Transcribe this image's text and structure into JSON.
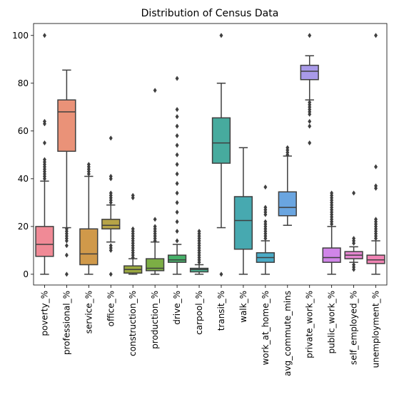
{
  "chart_data": {
    "type": "boxplot",
    "title": "Distribution of Census Data",
    "xlabel": "",
    "ylabel": "",
    "ylim": [
      -4.5,
      105
    ],
    "yticks": [
      0,
      20,
      40,
      60,
      80,
      100
    ],
    "categories": [
      "poverty_%",
      "professional_%",
      "service_%",
      "office_%",
      "construction_%",
      "production_%",
      "drive_%",
      "carpool_%",
      "transit_%",
      "walk_%",
      "work_at_home_%",
      "avg_commute_mins",
      "private_work_%",
      "public_work_%",
      "self_employed_%",
      "unemployment_%"
    ],
    "colors": [
      "#f08a96",
      "#ea9278",
      "#d0994a",
      "#b7a447",
      "#9ba93f",
      "#7cae45",
      "#46b069",
      "#48ae8d",
      "#47ab9e",
      "#47a9b0",
      "#4aabc6",
      "#6aa5e0",
      "#a99ae9",
      "#d085e8",
      "#e486d0",
      "#f083b3"
    ],
    "boxes": [
      {
        "label": "poverty_%",
        "whisker_low": 0,
        "q1": 7.5,
        "median": 12.5,
        "q3": 20,
        "whisker_high": 39,
        "outliers": [
          40,
          41,
          42,
          43,
          44,
          45,
          46,
          47,
          48,
          55,
          63,
          64,
          100
        ]
      },
      {
        "label": "professional_%",
        "whisker_low": 19.5,
        "q1": 51.5,
        "median": 68,
        "q3": 73,
        "whisker_high": 85.5,
        "outliers": [
          0,
          8,
          12,
          14,
          15,
          16,
          17,
          18,
          19
        ]
      },
      {
        "label": "service_%",
        "whisker_low": 0,
        "q1": 4,
        "median": 8.5,
        "q3": 19,
        "whisker_high": 41,
        "outliers": [
          42,
          43,
          44,
          45,
          46
        ]
      },
      {
        "label": "office_%",
        "whisker_low": 13.5,
        "q1": 19,
        "median": 20.5,
        "q3": 23,
        "whisker_high": 29,
        "outliers": [
          0,
          10,
          11,
          12,
          30,
          31,
          32,
          33,
          34,
          40,
          41,
          57
        ]
      },
      {
        "label": "construction_%",
        "whisker_low": 0,
        "q1": 0.5,
        "median": 2,
        "q3": 3.5,
        "whisker_high": 6.5,
        "outliers": [
          7,
          8,
          9,
          10,
          11,
          12,
          13,
          14,
          15,
          16,
          17,
          18,
          19,
          32,
          33
        ]
      },
      {
        "label": "production_%",
        "whisker_low": 0,
        "q1": 1.5,
        "median": 2.5,
        "q3": 6.5,
        "whisker_high": 13.5,
        "outliers": [
          14,
          15,
          16,
          17,
          18,
          19,
          20,
          23,
          77
        ]
      },
      {
        "label": "drive_%",
        "whisker_low": 0,
        "q1": 5,
        "median": 6,
        "q3": 8,
        "whisker_high": 12.5,
        "outliers": [
          14,
          18,
          22,
          26,
          30,
          34,
          38,
          42,
          46,
          50,
          54,
          58,
          62,
          66,
          69,
          82
        ]
      },
      {
        "label": "carpool_%",
        "whisker_low": 0,
        "q1": 1,
        "median": 2,
        "q3": 2.5,
        "whisker_high": 4,
        "outliers": [
          5,
          6,
          7,
          8,
          9,
          10,
          11,
          12,
          13,
          14,
          15,
          16,
          17,
          18
        ]
      },
      {
        "label": "transit_%",
        "whisker_low": 19.5,
        "q1": 46.5,
        "median": 55,
        "q3": 65.5,
        "whisker_high": 80,
        "outliers": [
          0,
          100
        ]
      },
      {
        "label": "walk_%",
        "whisker_low": 0,
        "q1": 10.5,
        "median": 22.5,
        "q3": 32.5,
        "whisker_high": 53,
        "outliers": []
      },
      {
        "label": "work_at_home_%",
        "whisker_low": 0,
        "q1": 5,
        "median": 7,
        "q3": 9,
        "whisker_high": 14,
        "outliers": [
          15,
          16,
          17,
          18,
          19,
          20,
          21,
          22,
          25,
          26,
          27,
          28,
          36.5
        ]
      },
      {
        "label": "avg_commute_mins",
        "whisker_low": 20.5,
        "q1": 24.5,
        "median": 28,
        "q3": 34.5,
        "whisker_high": 49.5,
        "outliers": [
          50,
          51,
          52,
          53
        ]
      },
      {
        "label": "private_work_%",
        "whisker_low": 73,
        "q1": 81.5,
        "median": 85,
        "q3": 87.5,
        "whisker_high": 91.5,
        "outliers": [
          55,
          62,
          64,
          67,
          68,
          69,
          70,
          71,
          72,
          100
        ]
      },
      {
        "label": "public_work_%",
        "whisker_low": 0,
        "q1": 5,
        "median": 7,
        "q3": 11,
        "whisker_high": 20,
        "outliers": [
          21,
          22,
          23,
          24,
          25,
          26,
          27,
          28,
          29,
          30,
          31,
          32,
          33,
          34
        ]
      },
      {
        "label": "self_employed_%",
        "whisker_low": 5,
        "q1": 6.5,
        "median": 8,
        "q3": 9.5,
        "whisker_high": 11.5,
        "outliers": [
          2,
          3,
          4,
          13,
          14,
          15,
          34
        ]
      },
      {
        "label": "unemployment_%",
        "whisker_low": 0,
        "q1": 4.5,
        "median": 6,
        "q3": 8,
        "whisker_high": 14,
        "outliers": [
          15,
          16,
          17,
          18,
          19,
          20,
          21,
          22,
          23,
          36,
          37,
          45,
          100
        ]
      }
    ]
  }
}
